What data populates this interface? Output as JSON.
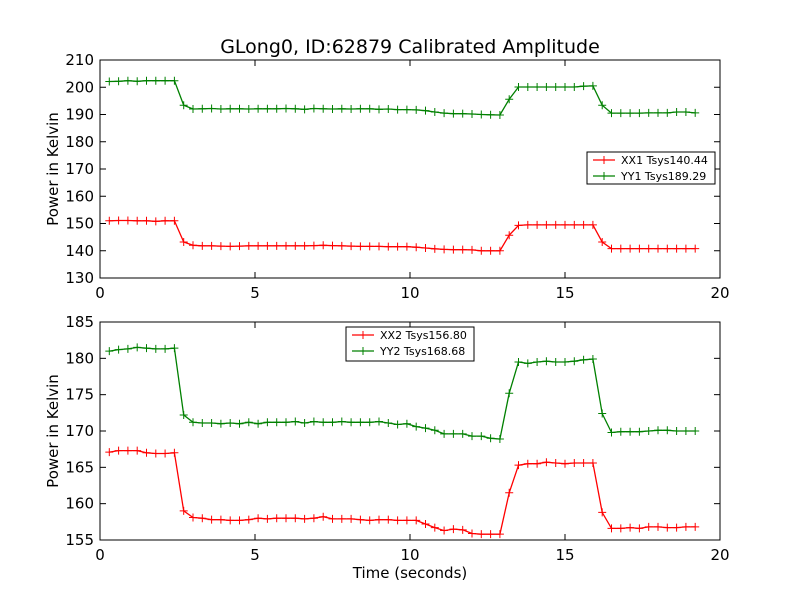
{
  "figure": {
    "title": "GLong0, ID:62879 Calibrated Amplitude",
    "xlabel": "Time (seconds)"
  },
  "chart_data": [
    {
      "type": "line",
      "title": "GLong0, ID:62879 Calibrated Amplitude",
      "xlabel": "",
      "ylabel": "Power in Kelvin",
      "xlim": [
        0,
        20
      ],
      "ylim": [
        130,
        210
      ],
      "xticks": [
        0,
        5,
        10,
        15,
        20
      ],
      "yticks": [
        130,
        140,
        150,
        160,
        170,
        180,
        190,
        200,
        210
      ],
      "legend_position": "center-right",
      "x": [
        0.3,
        0.6,
        0.9,
        1.2,
        1.5,
        1.8,
        2.1,
        2.4,
        2.7,
        3.0,
        3.3,
        3.6,
        3.9,
        4.2,
        4.5,
        4.8,
        5.1,
        5.4,
        5.7,
        6.0,
        6.3,
        6.6,
        6.9,
        7.2,
        7.5,
        7.8,
        8.1,
        8.4,
        8.7,
        9.0,
        9.3,
        9.6,
        9.9,
        10.2,
        10.5,
        10.8,
        11.1,
        11.4,
        11.7,
        12.0,
        12.3,
        12.6,
        12.9,
        13.2,
        13.5,
        13.8,
        14.1,
        14.4,
        14.7,
        15.0,
        15.3,
        15.6,
        15.9,
        16.2,
        16.5,
        16.8,
        17.1,
        17.4,
        17.7,
        18.0,
        18.3,
        18.6,
        18.9,
        19.2
      ],
      "series": [
        {
          "name": "XX1 Tsys140.44",
          "color": "#ff0000",
          "values": [
            151.0,
            151.1,
            151.1,
            151.0,
            151.0,
            150.8,
            151.0,
            151.0,
            143.2,
            142.0,
            141.8,
            141.8,
            141.7,
            141.6,
            141.7,
            141.8,
            141.8,
            141.8,
            141.8,
            141.8,
            141.8,
            141.8,
            141.9,
            142.0,
            141.9,
            141.8,
            141.7,
            141.6,
            141.6,
            141.6,
            141.5,
            141.5,
            141.5,
            141.3,
            141.0,
            140.7,
            140.5,
            140.4,
            140.4,
            140.3,
            140.0,
            140.0,
            140.0,
            145.7,
            149.3,
            149.5,
            149.5,
            149.5,
            149.5,
            149.5,
            149.5,
            149.5,
            149.5,
            143.2,
            140.8,
            140.8,
            140.8,
            140.8,
            140.8,
            140.8,
            140.8,
            140.8,
            140.8,
            140.8
          ]
        },
        {
          "name": "YY1 Tsys189.29",
          "color": "#008000",
          "values": [
            202.1,
            202.2,
            202.4,
            202.2,
            202.4,
            202.4,
            202.4,
            202.4,
            193.4,
            192.0,
            192.1,
            192.2,
            192.0,
            192.1,
            192.1,
            192.0,
            192.1,
            192.1,
            192.1,
            192.2,
            192.1,
            191.9,
            192.2,
            192.1,
            192.0,
            192.1,
            192.0,
            192.1,
            192.1,
            191.9,
            192.0,
            191.8,
            191.8,
            191.7,
            191.4,
            190.9,
            190.5,
            190.3,
            190.3,
            190.2,
            190.0,
            189.9,
            189.8,
            195.6,
            200.1,
            200.1,
            200.1,
            200.1,
            200.1,
            200.1,
            200.1,
            200.4,
            200.5,
            193.4,
            190.5,
            190.5,
            190.5,
            190.5,
            190.6,
            190.6,
            190.6,
            190.9,
            190.9,
            190.6
          ]
        }
      ]
    },
    {
      "type": "line",
      "title": "",
      "xlabel": "Time (seconds)",
      "ylabel": "Power in Kelvin",
      "xlim": [
        0,
        20
      ],
      "ylim": [
        155,
        185
      ],
      "xticks": [
        0,
        5,
        10,
        15,
        20
      ],
      "yticks": [
        155,
        160,
        165,
        170,
        175,
        180,
        185
      ],
      "legend_position": "top-center",
      "x": [
        0.3,
        0.6,
        0.9,
        1.2,
        1.5,
        1.8,
        2.1,
        2.4,
        2.7,
        3.0,
        3.3,
        3.6,
        3.9,
        4.2,
        4.5,
        4.8,
        5.1,
        5.4,
        5.7,
        6.0,
        6.3,
        6.6,
        6.9,
        7.2,
        7.5,
        7.8,
        8.1,
        8.4,
        8.7,
        9.0,
        9.3,
        9.6,
        9.9,
        10.2,
        10.5,
        10.8,
        11.1,
        11.4,
        11.7,
        12.0,
        12.3,
        12.6,
        12.9,
        13.2,
        13.5,
        13.8,
        14.1,
        14.4,
        14.7,
        15.0,
        15.3,
        15.6,
        15.9,
        16.2,
        16.5,
        16.8,
        17.1,
        17.4,
        17.7,
        18.0,
        18.3,
        18.6,
        18.9,
        19.2
      ],
      "series": [
        {
          "name": "XX2 Tsys156.80",
          "color": "#ff0000",
          "values": [
            167.1,
            167.3,
            167.3,
            167.3,
            167.0,
            166.9,
            166.9,
            167.0,
            159.0,
            158.1,
            158.0,
            157.8,
            157.8,
            157.7,
            157.7,
            157.8,
            158.0,
            157.9,
            158.0,
            158.0,
            158.0,
            157.9,
            158.0,
            158.2,
            157.9,
            157.9,
            157.9,
            157.8,
            157.7,
            157.8,
            157.8,
            157.7,
            157.7,
            157.7,
            157.2,
            156.7,
            156.3,
            156.5,
            156.4,
            155.9,
            155.8,
            155.8,
            155.8,
            161.5,
            165.3,
            165.5,
            165.5,
            165.7,
            165.6,
            165.5,
            165.6,
            165.6,
            165.6,
            158.8,
            156.6,
            156.6,
            156.7,
            156.6,
            156.8,
            156.8,
            156.7,
            156.7,
            156.8,
            156.8
          ]
        },
        {
          "name": "YY2 Tsys168.68",
          "color": "#008000",
          "values": [
            181.0,
            181.2,
            181.3,
            181.5,
            181.4,
            181.3,
            181.3,
            181.4,
            172.2,
            171.2,
            171.1,
            171.1,
            171.0,
            171.1,
            171.0,
            171.2,
            171.0,
            171.2,
            171.2,
            171.2,
            171.3,
            171.1,
            171.3,
            171.2,
            171.2,
            171.3,
            171.2,
            171.2,
            171.2,
            171.3,
            171.1,
            170.9,
            171.0,
            170.6,
            170.4,
            170.1,
            169.6,
            169.6,
            169.6,
            169.3,
            169.3,
            169.0,
            168.9,
            175.2,
            179.5,
            179.3,
            179.5,
            179.6,
            179.5,
            179.5,
            179.6,
            179.8,
            179.9,
            172.4,
            169.8,
            169.9,
            169.9,
            169.9,
            170.0,
            170.1,
            170.1,
            170.0,
            170.0,
            170.0
          ]
        }
      ]
    }
  ]
}
